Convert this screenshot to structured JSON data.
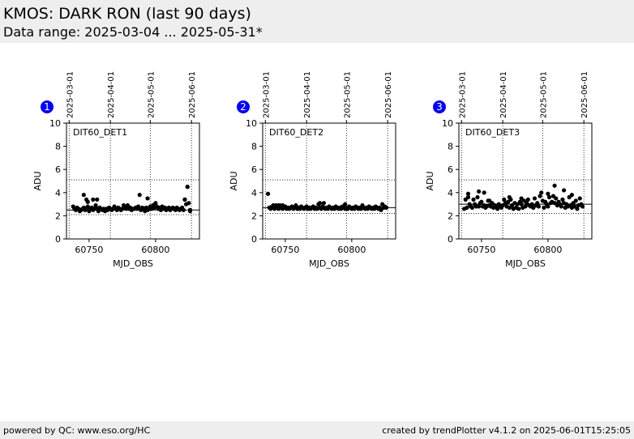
{
  "header": {
    "title": "KMOS: DARK RON (last 90 days)",
    "subtitle": "Data range: 2025-03-04 ... 2025-05-31*"
  },
  "footer": {
    "left": "powered by QC: www.eso.org/HC",
    "right": "created by trendPlotter v4.1.2 on 2025-06-01T15:25:05"
  },
  "colors": {
    "badge": "#0000ee",
    "background": "#ffffff",
    "band": "#eeeeee",
    "marker": "#000000"
  },
  "chart_data": [
    {
      "type": "scatter",
      "badge": "1",
      "label": "DIT60_DET1",
      "xlabel": "MJD_OBS",
      "ylabel": "ADU",
      "xlim": [
        60733,
        60833
      ],
      "ylim": [
        0,
        10
      ],
      "yticks": [
        0,
        2,
        4,
        6,
        8,
        10
      ],
      "xticks": [
        60750,
        60800
      ],
      "date_ticks": [
        {
          "label": "2025-03-01",
          "mjd": 60735
        },
        {
          "label": "2025-04-01",
          "mjd": 60766
        },
        {
          "label": "2025-05-01",
          "mjd": 60796
        },
        {
          "label": "2025-06-01",
          "mjd": 60827
        }
      ],
      "ref_line": 2.5,
      "band": [
        2.1,
        5.1
      ],
      "grid": "dotted",
      "series": [
        {
          "x": [
            60738,
            60739,
            60740,
            60741,
            60742,
            60743,
            60744,
            60745,
            60746,
            60747,
            60748,
            60749,
            60750,
            60751,
            60752,
            60753,
            60754,
            60755,
            60756,
            60757,
            60758,
            60759,
            60760,
            60761,
            60762,
            60763,
            60764,
            60765,
            60766,
            60767,
            60768,
            60769,
            60770,
            60771,
            60772,
            60773,
            60774,
            60775,
            60776,
            60777,
            60778,
            60779,
            60780,
            60781,
            60782,
            60783,
            60784,
            60785,
            60786,
            60787,
            60788,
            60789,
            60790,
            60791,
            60792,
            60793,
            60794,
            60795,
            60796,
            60797,
            60798,
            60799,
            60800,
            60801,
            60802,
            60803,
            60804,
            60805,
            60806,
            60807,
            60808,
            60809,
            60810,
            60811,
            60812,
            60813,
            60814,
            60815,
            60816,
            60817,
            60818,
            60819,
            60820,
            60821,
            60822,
            60823,
            60824,
            60825,
            60826,
            60746,
            60748,
            60749,
            60753,
            60756,
            60788,
            60794,
            60822,
            60824,
            60826
          ],
          "y": [
            2.8,
            2.6,
            2.5,
            2.7,
            2.6,
            2.4,
            2.5,
            2.6,
            2.7,
            2.5,
            2.6,
            2.8,
            2.4,
            2.6,
            2.7,
            2.5,
            2.6,
            2.9,
            2.6,
            2.4,
            2.7,
            2.6,
            2.5,
            2.6,
            2.4,
            2.6,
            2.5,
            2.7,
            2.6,
            2.5,
            2.6,
            2.8,
            2.6,
            2.5,
            2.7,
            2.6,
            2.5,
            2.6,
            2.9,
            2.7,
            2.6,
            2.9,
            2.6,
            2.7,
            2.5,
            2.6,
            2.6,
            2.7,
            2.6,
            2.8,
            2.6,
            2.5,
            2.7,
            2.6,
            2.4,
            2.7,
            2.5,
            2.6,
            2.8,
            2.6,
            2.9,
            2.7,
            3.1,
            2.8,
            2.6,
            2.7,
            2.5,
            2.8,
            2.6,
            2.7,
            2.5,
            2.6,
            2.7,
            2.5,
            2.6,
            2.7,
            2.6,
            2.5,
            2.7,
            2.6,
            2.5,
            2.6,
            2.7,
            2.5,
            3.4,
            3.0,
            4.5,
            3.1,
            2.5,
            3.8,
            3.4,
            3.2,
            3.4,
            3.4,
            3.8,
            3.5,
            3.4,
            4.5,
            2.4
          ]
        }
      ]
    },
    {
      "type": "scatter",
      "badge": "2",
      "label": "DIT60_DET2",
      "xlabel": "MJD_OBS",
      "ylabel": "ADU",
      "xlim": [
        60733,
        60833
      ],
      "ylim": [
        0,
        10
      ],
      "yticks": [
        0,
        2,
        4,
        6,
        8,
        10
      ],
      "xticks": [
        60750,
        60800
      ],
      "date_ticks": [
        {
          "label": "2025-03-01",
          "mjd": 60735
        },
        {
          "label": "2025-04-01",
          "mjd": 60766
        },
        {
          "label": "2025-05-01",
          "mjd": 60796
        },
        {
          "label": "2025-06-01",
          "mjd": 60827
        }
      ],
      "ref_line": 2.7,
      "band": [
        2.2,
        5.1
      ],
      "grid": "dotted",
      "series": [
        {
          "x": [
            60737,
            60738,
            60739,
            60740,
            60741,
            60742,
            60743,
            60744,
            60745,
            60746,
            60747,
            60748,
            60749,
            60750,
            60751,
            60752,
            60753,
            60754,
            60755,
            60756,
            60757,
            60758,
            60759,
            60760,
            60761,
            60762,
            60763,
            60764,
            60765,
            60766,
            60767,
            60768,
            60769,
            60770,
            60771,
            60772,
            60773,
            60774,
            60775,
            60776,
            60777,
            60778,
            60779,
            60780,
            60781,
            60782,
            60783,
            60784,
            60785,
            60786,
            60787,
            60788,
            60789,
            60790,
            60791,
            60792,
            60793,
            60794,
            60795,
            60796,
            60797,
            60798,
            60799,
            60800,
            60801,
            60802,
            60803,
            60804,
            60805,
            60806,
            60807,
            60808,
            60809,
            60810,
            60811,
            60812,
            60813,
            60814,
            60815,
            60816,
            60817,
            60818,
            60819,
            60820,
            60821,
            60822,
            60823,
            60824,
            60825,
            60826,
            60741,
            60743,
            60745,
            60748,
            60776,
            60779,
            60795
          ],
          "y": [
            3.9,
            2.7,
            2.6,
            2.8,
            2.7,
            2.6,
            2.8,
            2.7,
            2.6,
            2.9,
            2.7,
            2.6,
            2.7,
            2.8,
            2.6,
            2.7,
            2.6,
            2.7,
            2.8,
            2.6,
            2.7,
            2.9,
            2.6,
            2.7,
            2.6,
            2.8,
            2.7,
            2.6,
            2.7,
            2.8,
            2.6,
            2.7,
            2.6,
            2.7,
            2.8,
            2.6,
            2.7,
            2.6,
            3.0,
            2.7,
            2.6,
            2.8,
            2.7,
            2.6,
            2.7,
            2.6,
            2.8,
            2.7,
            2.6,
            2.7,
            2.6,
            2.8,
            2.7,
            2.6,
            2.7,
            2.6,
            2.8,
            2.7,
            2.6,
            2.7,
            2.6,
            2.8,
            2.7,
            2.6,
            2.7,
            2.6,
            2.8,
            2.7,
            2.6,
            2.7,
            2.6,
            2.9,
            2.7,
            2.6,
            2.7,
            2.6,
            2.8,
            2.7,
            2.6,
            2.7,
            2.6,
            2.8,
            2.7,
            2.6,
            2.7,
            2.5,
            3.0,
            2.7,
            2.8,
            2.7,
            2.9,
            2.9,
            2.9,
            2.9,
            3.1,
            3.1,
            3.0
          ]
        }
      ]
    },
    {
      "type": "scatter",
      "badge": "3",
      "label": "DIT60_DET3",
      "xlabel": "MJD_OBS",
      "ylabel": "ADU",
      "xlim": [
        60733,
        60833
      ],
      "ylim": [
        0,
        10
      ],
      "yticks": [
        0,
        2,
        4,
        6,
        8,
        10
      ],
      "xticks": [
        60750,
        60800
      ],
      "date_ticks": [
        {
          "label": "2025-03-01",
          "mjd": 60735
        },
        {
          "label": "2025-04-01",
          "mjd": 60766
        },
        {
          "label": "2025-05-01",
          "mjd": 60796
        },
        {
          "label": "2025-06-01",
          "mjd": 60827
        }
      ],
      "ref_line": 3.0,
      "band": [
        2.2,
        5.1
      ],
      "grid": "dotted",
      "series": [
        {
          "x": [
            60737,
            60738,
            60739,
            60740,
            60741,
            60742,
            60743,
            60744,
            60745,
            60746,
            60747,
            60748,
            60749,
            60750,
            60751,
            60752,
            60753,
            60754,
            60755,
            60756,
            60757,
            60758,
            60759,
            60760,
            60761,
            60762,
            60763,
            60764,
            60765,
            60766,
            60767,
            60768,
            60769,
            60770,
            60771,
            60772,
            60773,
            60774,
            60775,
            60776,
            60777,
            60778,
            60779,
            60780,
            60781,
            60782,
            60783,
            60784,
            60785,
            60786,
            60787,
            60788,
            60789,
            60790,
            60791,
            60792,
            60793,
            60794,
            60795,
            60796,
            60797,
            60798,
            60799,
            60800,
            60801,
            60802,
            60803,
            60804,
            60805,
            60806,
            60807,
            60808,
            60809,
            60810,
            60811,
            60812,
            60813,
            60814,
            60815,
            60816,
            60817,
            60818,
            60819,
            60820,
            60821,
            60822,
            60823,
            60824,
            60825,
            60826,
            60740,
            60748,
            60752,
            60756,
            60771,
            60780,
            60800,
            60805,
            60812,
            60818
          ],
          "y": [
            2.6,
            3.4,
            2.7,
            3.6,
            3.0,
            2.8,
            2.7,
            3.4,
            3.0,
            2.8,
            3.6,
            2.8,
            3.1,
            3.2,
            2.8,
            2.9,
            2.7,
            2.8,
            3.3,
            2.9,
            2.8,
            3.1,
            2.7,
            2.9,
            2.8,
            2.6,
            3.0,
            2.8,
            2.7,
            2.9,
            3.4,
            3.1,
            2.8,
            3.2,
            2.7,
            3.4,
            2.9,
            2.6,
            3.1,
            2.7,
            3.0,
            2.6,
            3.2,
            3.0,
            2.7,
            3.3,
            2.8,
            3.1,
            3.4,
            2.9,
            2.8,
            3.0,
            2.7,
            3.5,
            2.9,
            3.1,
            2.8,
            3.7,
            4.0,
            3.3,
            2.7,
            3.2,
            3.0,
            2.8,
            3.6,
            3.1,
            3.2,
            3.7,
            3.1,
            3.5,
            2.9,
            3.2,
            3.0,
            2.8,
            3.4,
            3.1,
            2.7,
            3.0,
            2.8,
            3.6,
            2.9,
            2.7,
            3.1,
            2.8,
            3.3,
            2.6,
            2.9,
            3.5,
            3.0,
            2.8,
            3.9,
            4.1,
            4.0,
            3.3,
            3.6,
            3.5,
            3.9,
            4.6,
            4.2,
            3.8
          ]
        }
      ]
    }
  ]
}
